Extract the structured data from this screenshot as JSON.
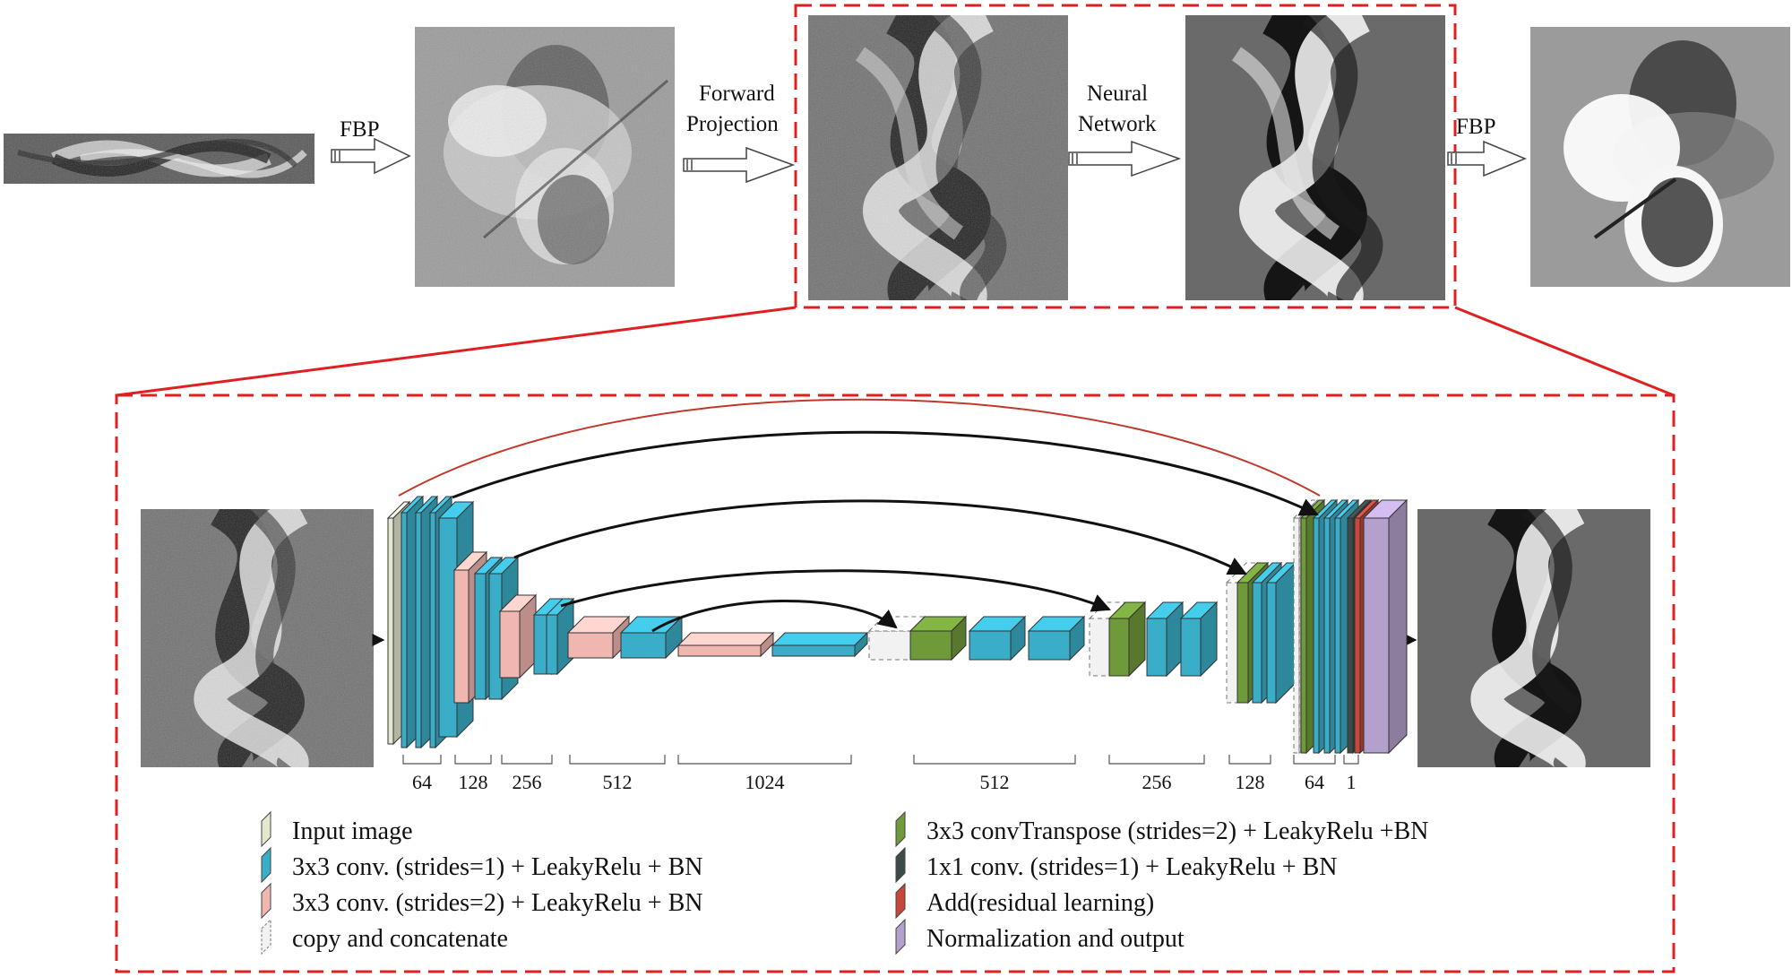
{
  "pipeline": {
    "fbp_label_1": "FBP",
    "forward_projection_line1": "Forward",
    "forward_projection_line2": "Projection",
    "neural_network_line1": "Neural",
    "neural_network_line2": "Network",
    "fbp_label_2": "FBP"
  },
  "network": {
    "channel_labels": [
      "64",
      "128",
      "256",
      "512",
      "1024",
      "512",
      "256",
      "128",
      "64",
      "1"
    ]
  },
  "legend": {
    "items": [
      {
        "label": "Input image",
        "color": "#e3e8cf"
      },
      {
        "label": "3x3 conv. (strides=1) + LeakyRelu + BN",
        "color": "#3aaec8"
      },
      {
        "label": "3x3 conv. (strides=2) + LeakyRelu + BN",
        "color": "#f0b6b0"
      },
      {
        "label": "copy and concatenate",
        "color": "#f2f2f2"
      },
      {
        "label": "3x3 convTranspose (strides=2) + LeakyRelu +BN",
        "color": "#6f9a3a"
      },
      {
        "label": "1x1 conv. (strides=1) + LeakyRelu + BN",
        "color": "#3b4a4a"
      },
      {
        "label": "Add(residual learning)",
        "color": "#c8463a"
      },
      {
        "label": "Normalization and output",
        "color": "#b3a0cc"
      }
    ]
  },
  "colors": {
    "highlight_box": "#e02020",
    "residual_arc": "#c0392b",
    "skip_arrows": "#111111"
  }
}
